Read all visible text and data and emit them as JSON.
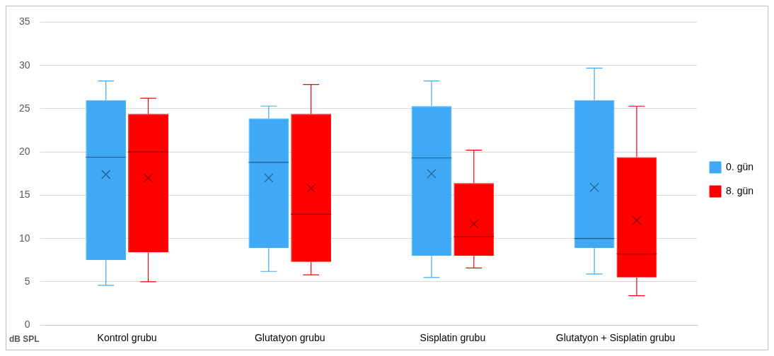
{
  "chart_data": {
    "type": "box",
    "ylabel": "dB SPL",
    "categories": [
      "Kontrol grubu",
      "Glutatyon grubu",
      "Sisplatin grubu",
      "Glutatyon + Sisplatin grubu"
    ],
    "series": [
      {
        "name": "0. gün",
        "color": "#3fa9f5",
        "boxes": [
          {
            "low": 4.6,
            "q1": 7.5,
            "median": 19.4,
            "q3": 26.0,
            "high": 28.2,
            "mean": 17.4
          },
          {
            "low": 6.2,
            "q1": 8.9,
            "median": 18.8,
            "q3": 23.9,
            "high": 25.3,
            "mean": 17.0
          },
          {
            "low": 5.5,
            "q1": 8.0,
            "median": 19.3,
            "q3": 25.3,
            "high": 28.2,
            "mean": 17.5
          },
          {
            "low": 5.9,
            "q1": 8.9,
            "median": 10.0,
            "q3": 26.0,
            "high": 29.7,
            "mean": 15.9
          }
        ]
      },
      {
        "name": "8. gün",
        "color": "#ff0000",
        "boxes": [
          {
            "low": 5.0,
            "q1": 8.4,
            "median": 20.0,
            "q3": 24.4,
            "high": 26.2,
            "mean": 17.0
          },
          {
            "low": 5.8,
            "q1": 7.3,
            "median": 12.8,
            "q3": 24.4,
            "high": 27.8,
            "mean": 15.8
          },
          {
            "low": 6.6,
            "q1": 8.0,
            "median": 10.2,
            "q3": 16.4,
            "high": 20.2,
            "mean": 11.7
          },
          {
            "low": 3.4,
            "q1": 5.5,
            "median": 8.2,
            "q3": 19.4,
            "high": 25.3,
            "mean": 12.1
          }
        ]
      }
    ],
    "ylim": [
      0,
      35
    ],
    "yticks": [
      0,
      5,
      10,
      15,
      20,
      25,
      30,
      35
    ],
    "grid": "y",
    "legend": "right"
  }
}
